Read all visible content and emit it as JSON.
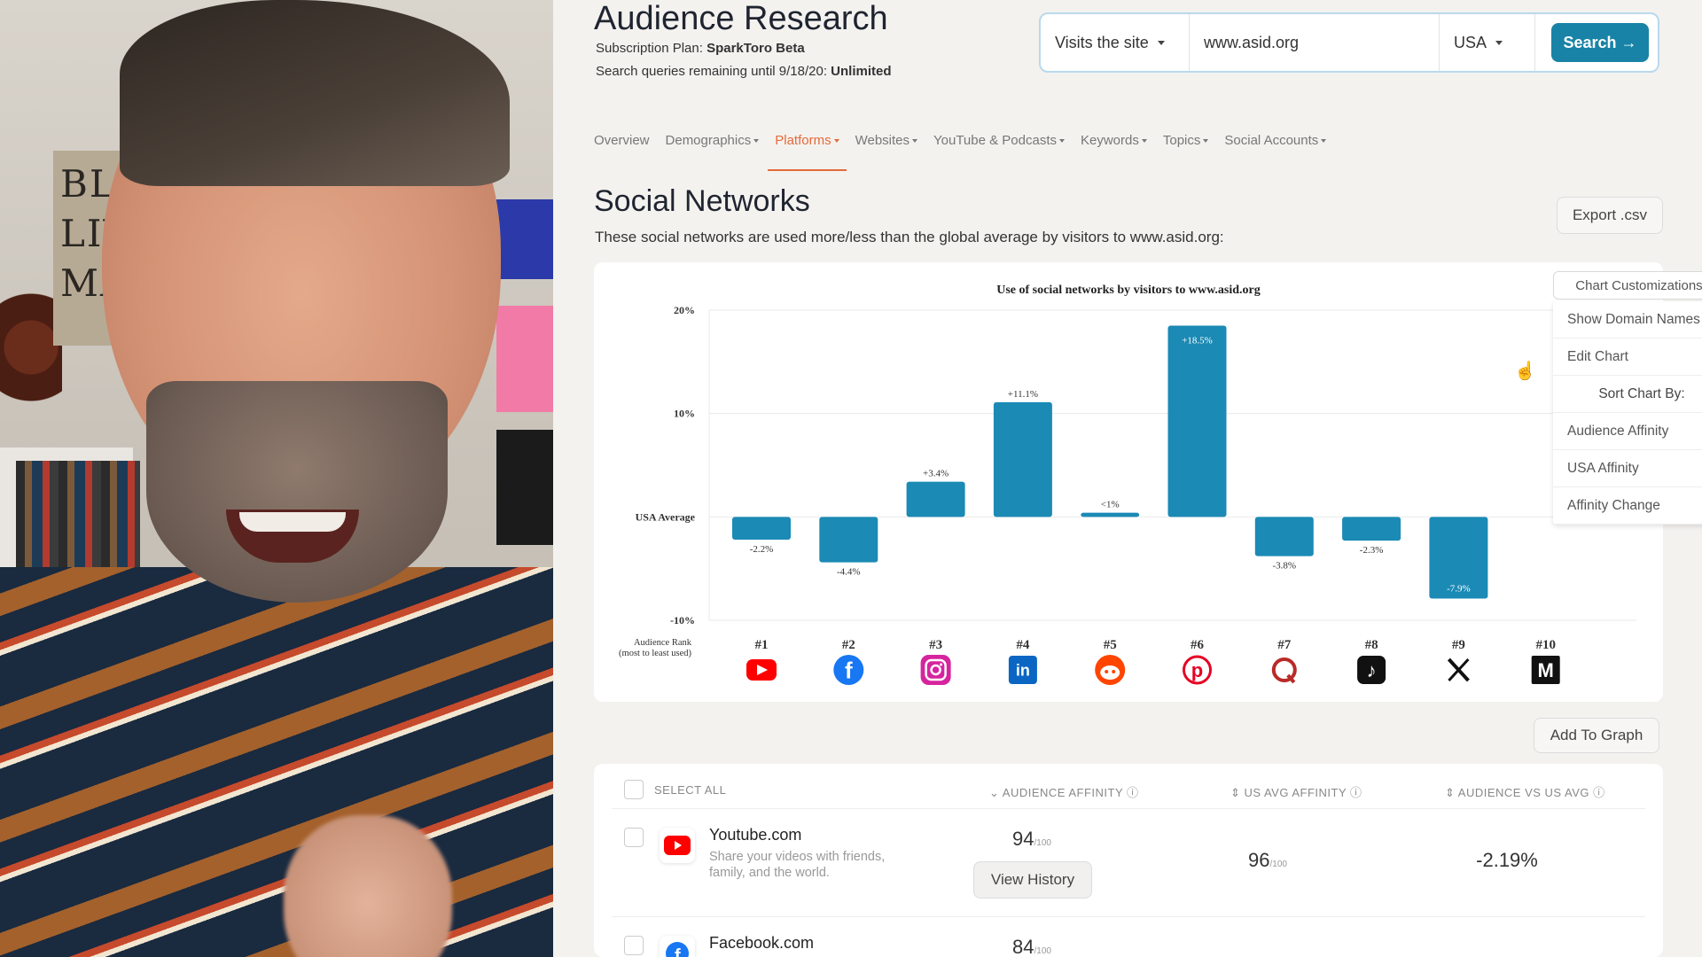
{
  "header": {
    "title": "Audience Research",
    "plan_label": "Subscription Plan:",
    "plan_value": "SparkToro Beta",
    "queries_label": "Search queries remaining until 9/18/20:",
    "queries_value": "Unlimited"
  },
  "search": {
    "mode": "Visits the site",
    "query": "www.asid.org",
    "country": "USA",
    "button_label": "Search →"
  },
  "nav": [
    {
      "label": "Overview",
      "dropdown": false,
      "active": false
    },
    {
      "label": "Demographics",
      "dropdown": true,
      "active": false
    },
    {
      "label": "Platforms",
      "dropdown": true,
      "active": true
    },
    {
      "label": "Websites",
      "dropdown": true,
      "active": false
    },
    {
      "label": "YouTube & Podcasts",
      "dropdown": true,
      "active": false
    },
    {
      "label": "Keywords",
      "dropdown": true,
      "active": false
    },
    {
      "label": "Topics",
      "dropdown": true,
      "active": false
    },
    {
      "label": "Social Accounts",
      "dropdown": true,
      "active": false
    }
  ],
  "section": {
    "title": "Social Networks",
    "description": "These social networks are used more/less than the global average by visitors to www.asid.org:",
    "export_label": "Export .csv"
  },
  "chart_customizations": {
    "button_label": "Chart Customizations",
    "items": [
      {
        "label": "Show Domain Names",
        "header": false
      },
      {
        "label": "Edit Chart",
        "header": false
      },
      {
        "label": "Sort Chart By:",
        "header": true
      },
      {
        "label": "Audience Affinity",
        "header": false
      },
      {
        "label": "USA Affinity",
        "header": false
      },
      {
        "label": "Affinity Change",
        "header": false
      }
    ]
  },
  "chart_data": {
    "type": "bar",
    "title": "Use of social networks by visitors to www.asid.org",
    "baseline_label": "USA Average",
    "rank_label_line1": "Audience Rank",
    "rank_label_line2": "(most to least used)",
    "y_ticks": [
      {
        "value": 20,
        "label": "20%"
      },
      {
        "value": 10,
        "label": "10%"
      },
      {
        "value": -10,
        "label": "-10%"
      }
    ],
    "ylim": [
      -10,
      20
    ],
    "categories": [
      "#1",
      "#2",
      "#3",
      "#4",
      "#5",
      "#6",
      "#7",
      "#8",
      "#9",
      "#10"
    ],
    "platform_icons": [
      "youtube-icon",
      "facebook-icon",
      "instagram-icon",
      "linkedin-icon",
      "reddit-icon",
      "pinterest-icon",
      "quora-icon",
      "tiktok-icon",
      "x-twitter-icon",
      "medium-icon"
    ],
    "values": [
      -2.2,
      -4.4,
      3.4,
      11.1,
      0.4,
      18.5,
      -3.8,
      -2.3,
      -7.9,
      null
    ],
    "data_labels": [
      "-2.2%",
      "-4.4%",
      "+3.4%",
      "+11.1%",
      "<1%",
      "+18.5%",
      "-3.8%",
      "-2.3%",
      "-7.9%",
      ""
    ],
    "bar_color": "#1b8ab5"
  },
  "add_to_graph_label": "Add To Graph",
  "table": {
    "select_all_label": "SELECT ALL",
    "columns": [
      "AUDIENCE AFFINITY",
      "US AVG AFFINITY",
      "AUDIENCE VS US AVG"
    ],
    "rows": [
      {
        "name": "Youtube.com",
        "description": "Share your videos with friends, family, and the world.",
        "audience_affinity": "94",
        "us_avg_affinity": "96",
        "out_of": "/100",
        "vs_us_avg": "-2.19%",
        "view_history_label": "View History",
        "icon": "youtube-icon"
      },
      {
        "name": "Facebook.com",
        "description": "",
        "audience_affinity": "84",
        "out_of": "/100",
        "icon": "facebook-icon"
      }
    ]
  },
  "colors": {
    "accent_orange": "#e46a3a",
    "primary_blue": "#1883a6",
    "bar_blue": "#1b8ab5"
  }
}
